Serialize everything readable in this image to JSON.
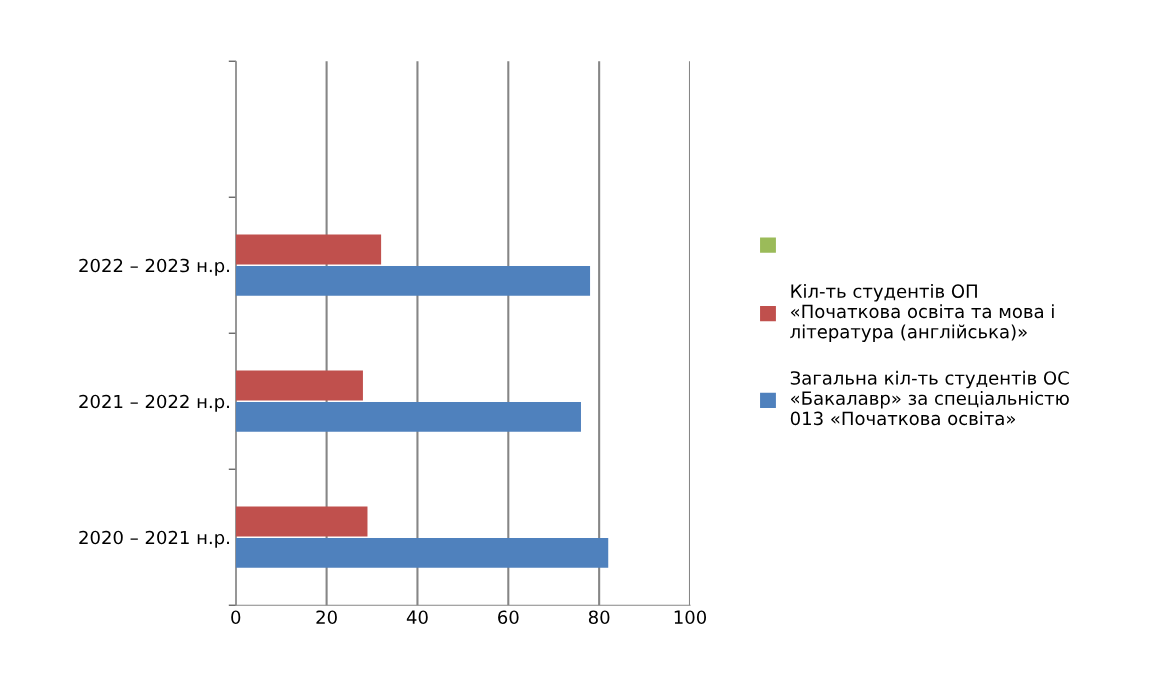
{
  "chart_data": {
    "type": "bar",
    "orientation": "horizontal",
    "categories": [
      null,
      "2022 – 2023 н.р.",
      "2021 – 2022 н.р.",
      "2020 – 2021 н.р."
    ],
    "series": [
      {
        "name": "Загальна кіл-ть студентів ОС\n«Бакалавр» за спеціальністю\n013 «Початкова освіта»",
        "color": "#4f81bd",
        "values": [
          null,
          78,
          76,
          82
        ]
      },
      {
        "name": "Кіл-ть студентів ОП\n«Початкова освіта та мова і\nлітература (англійська)»",
        "color": "#c0504d",
        "values": [
          null,
          32,
          28,
          29
        ]
      },
      {
        "color": "#9bbb59",
        "values": [
          null,
          null,
          null,
          null
        ]
      }
    ],
    "xlim": [
      0,
      100
    ],
    "xticks": [
      0,
      20,
      40,
      60,
      80,
      100
    ],
    "grid": "x",
    "legend": "right"
  }
}
